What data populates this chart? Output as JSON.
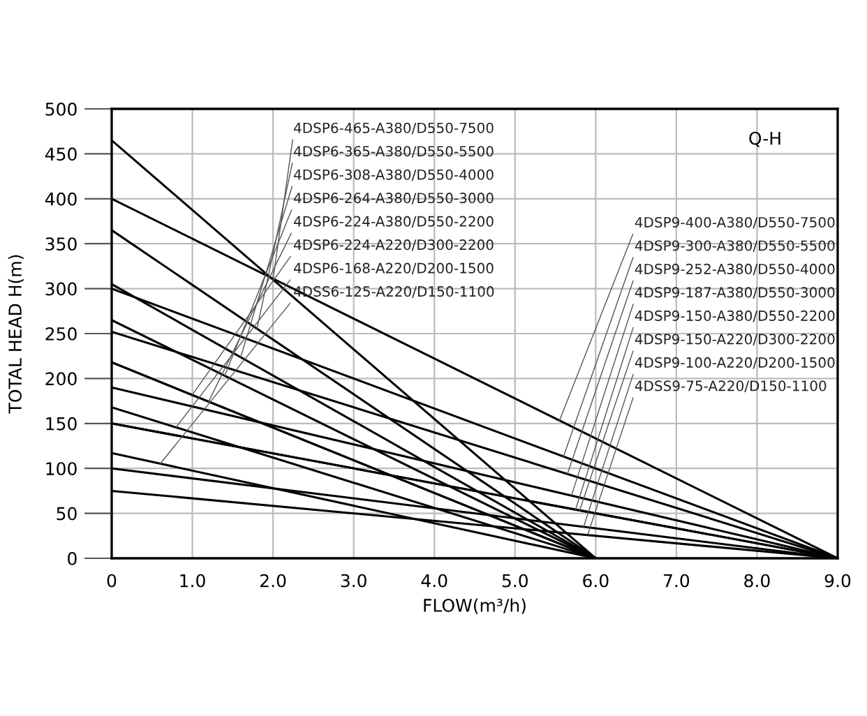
{
  "chart_data": {
    "type": "line",
    "xlabel": "FLOW(m³/h)",
    "ylabel": "TOTAL HEAD H(m)",
    "xlim": [
      0,
      9
    ],
    "ylim": [
      0,
      500
    ],
    "xticks": [
      0,
      {
        "value": 1,
        "label": "1.0"
      },
      {
        "value": 2,
        "label": "2.0"
      },
      {
        "value": 3,
        "label": "3.0"
      },
      {
        "value": 4,
        "label": "4.0"
      },
      {
        "value": 5,
        "label": "5.0"
      },
      {
        "value": 6,
        "label": "6.0"
      },
      {
        "value": 7,
        "label": "7.0"
      },
      {
        "value": 8,
        "label": "8.0"
      },
      {
        "value": 9,
        "label": "9.0"
      }
    ],
    "yticks": [
      0,
      50,
      100,
      150,
      200,
      250,
      300,
      350,
      400,
      450,
      500
    ],
    "grid": true,
    "marker": "none",
    "line_style": "solid",
    "series": [
      {
        "color": "#000000",
        "x": [
          0,
          6
        ],
        "values": [
          465,
          0
        ]
      },
      {
        "color": "#000000",
        "x": [
          0,
          6
        ],
        "values": [
          365,
          0
        ]
      },
      {
        "color": "#000000",
        "x": [
          0,
          6
        ],
        "values": [
          305,
          0
        ]
      },
      {
        "color": "#000000",
        "x": [
          0,
          6
        ],
        "values": [
          265,
          0
        ]
      },
      {
        "color": "#000000",
        "x": [
          0,
          6
        ],
        "values": [
          218,
          0
        ]
      },
      {
        "color": "#000000",
        "x": [
          0,
          6
        ],
        "values": [
          218,
          0
        ]
      },
      {
        "color": "#000000",
        "x": [
          0,
          6
        ],
        "values": [
          168,
          0
        ]
      },
      {
        "color": "#000000",
        "x": [
          0,
          6
        ],
        "values": [
          117,
          0
        ]
      },
      {
        "color": "#000000",
        "x": [
          0,
          9
        ],
        "values": [
          400,
          0
        ]
      },
      {
        "color": "#000000",
        "x": [
          0,
          9
        ],
        "values": [
          300,
          0
        ]
      },
      {
        "color": "#000000",
        "x": [
          0,
          9
        ],
        "values": [
          252,
          0
        ]
      },
      {
        "color": "#000000",
        "x": [
          0,
          9
        ],
        "values": [
          190,
          0
        ]
      },
      {
        "color": "#000000",
        "x": [
          0,
          9
        ],
        "values": [
          150,
          0
        ]
      },
      {
        "color": "#000000",
        "x": [
          0,
          9
        ],
        "values": [
          150,
          0
        ]
      },
      {
        "color": "#000000",
        "x": [
          0,
          9
        ],
        "values": [
          100,
          0
        ]
      },
      {
        "color": "#000000",
        "x": [
          0,
          9
        ],
        "values": [
          75,
          0
        ]
      }
    ],
    "annotations": [
      "Q-H",
      {
        "text": "4DSP6-465-A380/D550-7500",
        "x": 2.0,
        "y": 310
      },
      {
        "text": "4DSP6-365-A380/D550-5500",
        "x": 1.8,
        "y": 255
      },
      {
        "text": "4DSP6-308-A380/D550-4000",
        "x": 1.6,
        "y": 224
      },
      {
        "text": "4DSP6-264-A380/D550-3000",
        "x": 1.4,
        "y": 203
      },
      {
        "text": "4DSP6-224-A380/D550-2200",
        "x": 1.2,
        "y": 174
      },
      {
        "text": "4DSP6-224-A220/D300-2200",
        "x": 1.0,
        "y": 182
      },
      {
        "text": "4DSP6-168-A220/D200-1500",
        "x": 0.8,
        "y": 146
      },
      {
        "text": "4DSS6-125-A220/D150-1100",
        "x": 0.6,
        "y": 105
      },
      {
        "text": "4DSP9-400-A380/D550-7500",
        "x": 5.55,
        "y": 153
      },
      {
        "text": "4DSP9-300-A380/D550-5500",
        "x": 5.6,
        "y": 113
      },
      {
        "text": "4DSP9-252-A380/D550-4000",
        "x": 5.65,
        "y": 94
      },
      {
        "text": "4DSP9-187-A380/D550-3000",
        "x": 5.7,
        "y": 70
      },
      {
        "text": "4DSP9-150-A380/D550-2200",
        "x": 5.75,
        "y": 54
      },
      {
        "text": "4DSP9-150-A220/D300-2200",
        "x": 5.8,
        "y": 53
      },
      {
        "text": "4DSP9-100-A220/D200-1500",
        "x": 5.85,
        "y": 35
      },
      {
        "text": "4DSS9-75-A220/D150-1100",
        "x": 5.9,
        "y": 26
      }
    ]
  }
}
